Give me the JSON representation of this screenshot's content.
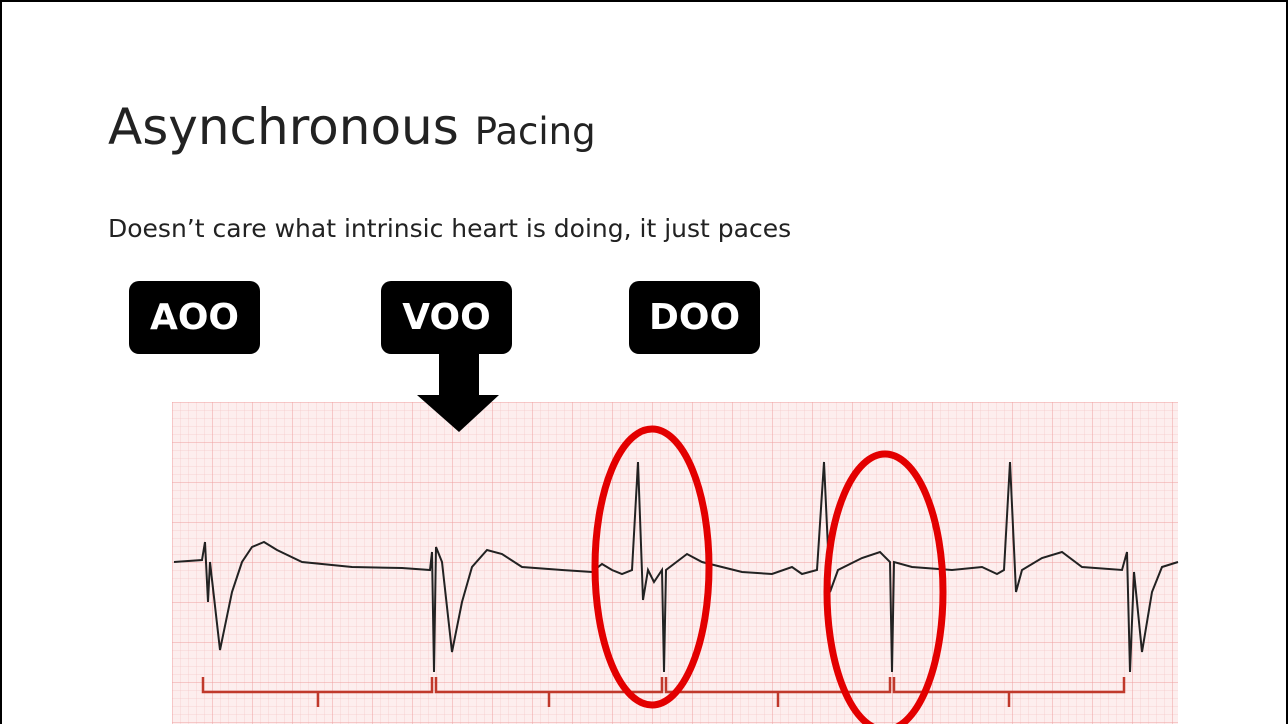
{
  "title": {
    "main": "Asynchronous",
    "sub": "Pacing"
  },
  "body": "Doesn’t care what intrinsic heart is doing, it just paces",
  "labels": [
    "AOO",
    "VOO",
    "DOO"
  ]
}
